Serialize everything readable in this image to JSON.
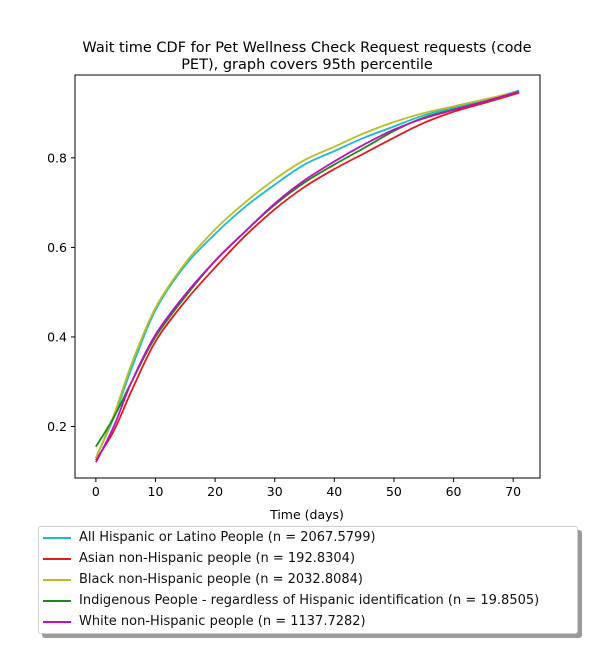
{
  "chart_data": {
    "type": "line",
    "title": "Wait time CDF for Pet Wellness Check Request  requests (code PET), graph covers 95th percentile",
    "title_lines": [
      "Wait time CDF for Pet Wellness Check Request  requests (code",
      "PET), graph covers 95th percentile"
    ],
    "xlabel": "Time (days)",
    "ylabel": "",
    "xlim": [
      -3.5,
      74.5
    ],
    "ylim": [
      0.085,
      0.985
    ],
    "xticks": [
      0,
      10,
      20,
      30,
      40,
      50,
      60,
      70
    ],
    "yticks": [
      0.2,
      0.4,
      0.6,
      0.8
    ],
    "grid": false,
    "legend_position": "below",
    "series": [
      {
        "name": "All Hispanic or Latino People (n = 2067.5799)",
        "color": "#17becf",
        "x": [
          0,
          3,
          6,
          10,
          15,
          20,
          25,
          30,
          35,
          40,
          45,
          50,
          55,
          60,
          65,
          71
        ],
        "y": [
          0.13,
          0.22,
          0.33,
          0.46,
          0.56,
          0.63,
          0.69,
          0.74,
          0.785,
          0.815,
          0.845,
          0.87,
          0.895,
          0.912,
          0.928,
          0.95
        ]
      },
      {
        "name": "Asian non-Hispanic people (n = 192.8304)",
        "color": "#e6191c",
        "x": [
          0,
          3,
          6,
          10,
          15,
          20,
          25,
          30,
          35,
          40,
          45,
          50,
          55,
          60,
          65,
          71
        ],
        "y": [
          0.125,
          0.19,
          0.28,
          0.39,
          0.48,
          0.555,
          0.625,
          0.685,
          0.735,
          0.775,
          0.81,
          0.845,
          0.878,
          0.903,
          0.922,
          0.945
        ]
      },
      {
        "name": "Black non-Hispanic people (n = 2032.8084)",
        "color": "#bcbd22",
        "x": [
          0,
          3,
          6,
          10,
          15,
          20,
          25,
          30,
          35,
          40,
          45,
          50,
          55,
          60,
          65,
          71
        ],
        "y": [
          0.13,
          0.225,
          0.34,
          0.465,
          0.565,
          0.64,
          0.7,
          0.752,
          0.795,
          0.825,
          0.855,
          0.88,
          0.9,
          0.915,
          0.93,
          0.948
        ]
      },
      {
        "name": "Indigenous People - regardless of Hispanic identification (n = 19.8505)",
        "color": "#1a8a1a",
        "x": [
          0,
          3,
          6,
          10,
          15,
          20,
          25,
          30,
          35,
          40,
          45,
          50,
          55,
          60,
          65,
          71
        ],
        "y": [
          0.155,
          0.22,
          0.3,
          0.4,
          0.49,
          0.57,
          0.635,
          0.695,
          0.745,
          0.785,
          0.822,
          0.86,
          0.89,
          0.908,
          0.925,
          0.948
        ]
      },
      {
        "name": "White non-Hispanic people (n = 1137.7282)",
        "color": "#bf10bf",
        "x": [
          0,
          3,
          6,
          10,
          15,
          20,
          25,
          30,
          35,
          40,
          45,
          50,
          55,
          60,
          65,
          71
        ],
        "y": [
          0.12,
          0.2,
          0.3,
          0.405,
          0.495,
          0.57,
          0.635,
          0.698,
          0.75,
          0.792,
          0.83,
          0.863,
          0.888,
          0.907,
          0.925,
          0.948
        ]
      }
    ]
  }
}
